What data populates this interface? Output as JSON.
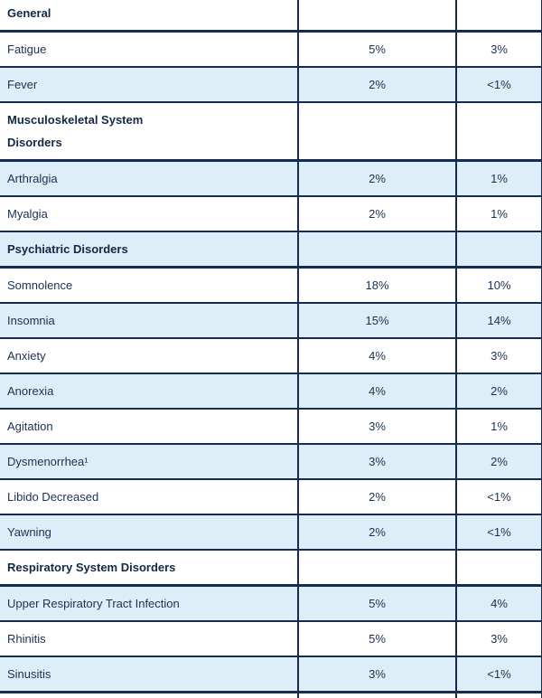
{
  "table": {
    "description": "Adverse events table listing body systems and event incidence percentages",
    "colors": {
      "border": "#152c50",
      "alt_row_background": "#ddeef8",
      "row_background": "#ffffff",
      "text": "#1b3150",
      "section_text": "#122844"
    },
    "rows": [
      {
        "type": "section",
        "label": "General",
        "col2": "",
        "col3": "",
        "alt": false
      },
      {
        "type": "data",
        "label": "Fatigue",
        "col2": "5%",
        "col3": "3%",
        "alt": false
      },
      {
        "type": "data",
        "label": "Fever",
        "col2": "2%",
        "col3": "<1%",
        "alt": true
      },
      {
        "type": "section",
        "label": "Musculoskeletal System\nDisorders",
        "col2": "",
        "col3": "",
        "alt": false
      },
      {
        "type": "data",
        "label": "Arthralgia",
        "col2": "2%",
        "col3": "1%",
        "alt": true
      },
      {
        "type": "data",
        "label": "Myalgia",
        "col2": "2%",
        "col3": "1%",
        "alt": false
      },
      {
        "type": "section",
        "label": "Psychiatric Disorders",
        "col2": "",
        "col3": "",
        "alt": true
      },
      {
        "type": "data",
        "label": "Somnolence",
        "col2": "18%",
        "col3": "10%",
        "alt": false
      },
      {
        "type": "data",
        "label": "Insomnia",
        "col2": "15%",
        "col3": "14%",
        "alt": true
      },
      {
        "type": "data",
        "label": "Anxiety",
        "col2": "4%",
        "col3": "3%",
        "alt": false
      },
      {
        "type": "data",
        "label": "Anorexia",
        "col2": "4%",
        "col3": "2%",
        "alt": true
      },
      {
        "type": "data",
        "label": "Agitation",
        "col2": "3%",
        "col3": "1%",
        "alt": false
      },
      {
        "type": "data",
        "label": "Dysmenorrhea¹",
        "col2": "3%",
        "col3": "2%",
        "alt": true
      },
      {
        "type": "data",
        "label": "Libido Decreased",
        "col2": "2%",
        "col3": "<1%",
        "alt": false
      },
      {
        "type": "data",
        "label": "Yawning",
        "col2": "2%",
        "col3": "<1%",
        "alt": true
      },
      {
        "type": "section",
        "label": "Respiratory System Disorders",
        "col2": "",
        "col3": "",
        "alt": false
      },
      {
        "type": "data",
        "label": "Upper Respiratory Tract Infection",
        "col2": "5%",
        "col3": "4%",
        "alt": true
      },
      {
        "type": "data",
        "label": "Rhinitis",
        "col2": "5%",
        "col3": "3%",
        "alt": false
      },
      {
        "type": "data",
        "label": "Sinusitis",
        "col2": "3%",
        "col3": "<1%",
        "alt": true
      }
    ]
  }
}
